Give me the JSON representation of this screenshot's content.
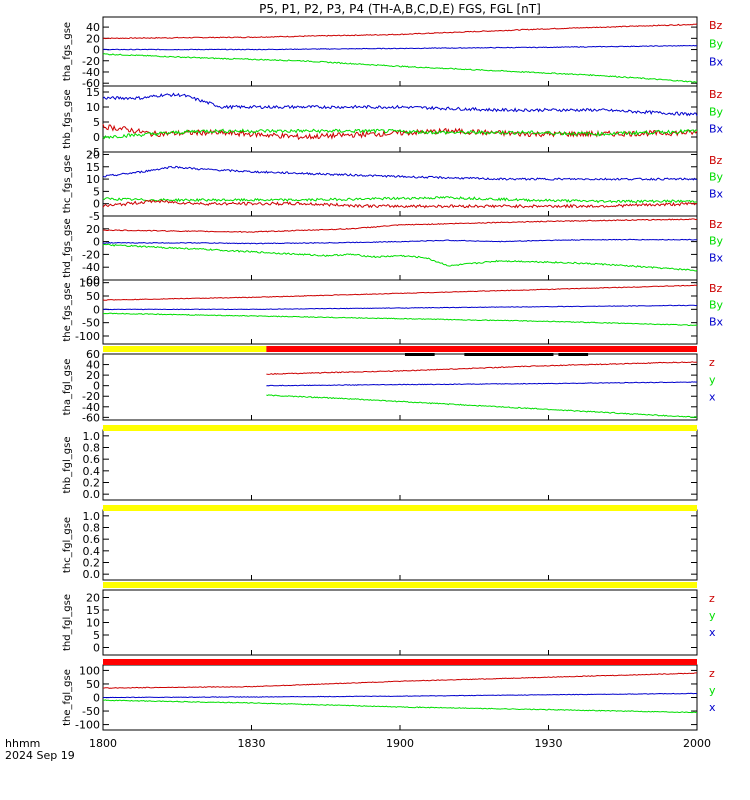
{
  "title": "P5, P1, P2, P3, P4 (TH-A,B,C,D,E) FGS, FGL [nT]",
  "footer": {
    "time_label": "hhmm",
    "date_label": "2024 Sep 19"
  },
  "colors": {
    "x": "#0000cc",
    "y": "#00dd00",
    "z": "#cc0000",
    "bar_yellow": "#ffff00",
    "bar_red": "#ff0000",
    "bar_black": "#000000"
  },
  "chart_data": {
    "type": "line",
    "x_axis": {
      "range": [
        0,
        120
      ],
      "ticks": [
        0,
        30,
        60,
        90,
        120
      ],
      "tick_labels": [
        "1800",
        "1830",
        "1900",
        "1930",
        "2000"
      ]
    },
    "panels": [
      {
        "id": "tha_fgs",
        "ylabel": "tha_fgs_gse",
        "ylim": [
          -65,
          58
        ],
        "yticks": [
          -60,
          -40,
          -20,
          0,
          20,
          40
        ],
        "ytick_labels": [
          "-60",
          "-40",
          "-20",
          "0",
          "20",
          "40"
        ],
        "legend": [
          "Bz",
          "By",
          "Bx"
        ],
        "series": [
          {
            "name": "Bz",
            "color": "z",
            "noise": 0.8,
            "x": [
              0,
              30,
              60,
              90,
              120
            ],
            "y": [
              20,
              22,
              27,
              37,
              45
            ]
          },
          {
            "name": "By",
            "color": "x",
            "noise": 0.6,
            "x": [
              0,
              30,
              60,
              90,
              120
            ],
            "y": [
              0,
              0,
              2,
              4,
              7
            ]
          },
          {
            "name": "Bx",
            "color": "y",
            "noise": 1.0,
            "x": [
              0,
              20,
              40,
              60,
              80,
              100,
              120
            ],
            "y": [
              -8,
              -15,
              -20,
              -30,
              -38,
              -46,
              -58
            ]
          }
        ]
      },
      {
        "id": "thb_fgs",
        "ylabel": "thb_fgs_gse",
        "ylim": [
          -5,
          17
        ],
        "yticks": [
          -5,
          0,
          5,
          10,
          15
        ],
        "ytick_labels": [
          "-5",
          "0",
          "5",
          "10",
          "15"
        ],
        "legend": [
          "Bz",
          "By",
          "Bx"
        ],
        "series": [
          {
            "name": "Bz",
            "color": "x",
            "noise": 0.5,
            "x": [
              0,
              8,
              12,
              16,
              20,
              24,
              32,
              45,
              60,
              80,
              100,
              120
            ],
            "y": [
              13,
              13,
              14,
              14,
              12,
              10,
              10,
              10,
              10,
              9,
              9,
              7.5
            ]
          },
          {
            "name": "By",
            "color": "z",
            "noise": 0.9,
            "x": [
              0,
              5,
              10,
              20,
              30,
              40,
              55,
              70,
              85,
              100,
              120
            ],
            "y": [
              3.5,
              2.5,
              1,
              1.5,
              1,
              0,
              1,
              2,
              1,
              1,
              1.5
            ]
          },
          {
            "name": "Bx",
            "color": "y",
            "noise": 0.6,
            "x": [
              0,
              10,
              20,
              30,
              40,
              55,
              70,
              85,
              100,
              120
            ],
            "y": [
              0,
              1,
              2,
              2,
              2,
              2,
              1.5,
              1.5,
              1,
              2
            ]
          }
        ]
      },
      {
        "id": "thc_fgs",
        "ylabel": "thc_fgs_gse",
        "ylim": [
          -5,
          21
        ],
        "yticks": [
          -5,
          0,
          5,
          10,
          15,
          20
        ],
        "ytick_labels": [
          "-5",
          "0",
          "5",
          "10",
          "15",
          "20"
        ],
        "legend": [
          "Bz",
          "By",
          "Bx"
        ],
        "series": [
          {
            "name": "Bz",
            "color": "x",
            "noise": 0.4,
            "x": [
              0,
              8,
              14,
              20,
              30,
              45,
              60,
              80,
              100,
              120
            ],
            "y": [
              11,
              13,
              15,
              14,
              13,
              12,
              11,
              10,
              10,
              10
            ]
          },
          {
            "name": "By",
            "color": "y",
            "noise": 0.5,
            "x": [
              0,
              10,
              20,
              30,
              40,
              55,
              70,
              85,
              100,
              120
            ],
            "y": [
              2,
              1.5,
              1.5,
              1.5,
              1.5,
              2,
              2.5,
              1.5,
              1,
              1
            ]
          },
          {
            "name": "Bx",
            "color": "z",
            "noise": 0.6,
            "x": [
              0,
              10,
              20,
              30,
              40,
              55,
              70,
              85,
              100,
              120
            ],
            "y": [
              -1,
              1,
              0,
              0,
              0,
              -1,
              -1,
              -1,
              -1,
              0
            ]
          }
        ]
      },
      {
        "id": "thd_fgs",
        "ylabel": "thd_fgs_gse",
        "ylim": [
          -60,
          40
        ],
        "yticks": [
          -60,
          -40,
          -20,
          0,
          20
        ],
        "ytick_labels": [
          "-60",
          "-40",
          "-20",
          "0",
          "20"
        ],
        "legend": [
          "Bz",
          "By",
          "Bx"
        ],
        "series": [
          {
            "name": "Bz",
            "color": "z",
            "noise": 0.7,
            "x": [
              0,
              30,
              50,
              60,
              80,
              100,
              120
            ],
            "y": [
              18,
              15,
              20,
              26,
              30,
              33,
              35
            ]
          },
          {
            "name": "By",
            "color": "x",
            "noise": 0.6,
            "x": [
              0,
              20,
              30,
              45,
              60,
              70,
              80,
              90,
              100,
              120
            ],
            "y": [
              -2,
              -2,
              -3,
              -2,
              0,
              2,
              0,
              2,
              3,
              3
            ]
          },
          {
            "name": "Bx",
            "color": "y",
            "noise": 1.2,
            "x": [
              0,
              20,
              35,
              45,
              50,
              55,
              60,
              65,
              70,
              80,
              90,
              100,
              120
            ],
            "y": [
              -5,
              -12,
              -18,
              -22,
              -20,
              -24,
              -22,
              -25,
              -38,
              -30,
              -32,
              -35,
              -45
            ]
          }
        ]
      },
      {
        "id": "the_fgs",
        "ylabel": "the_fgs_gse",
        "ylim": [
          -130,
          110
        ],
        "yticks": [
          -100,
          -50,
          0,
          50,
          100
        ],
        "ytick_labels": [
          "-100",
          "-50",
          "0",
          "50",
          "100"
        ],
        "legend": [
          "Bz",
          "By",
          "Bx"
        ],
        "series": [
          {
            "name": "Bz",
            "color": "z",
            "noise": 1.2,
            "x": [
              0,
              30,
              60,
              90,
              120
            ],
            "y": [
              35,
              45,
              60,
              75,
              90
            ]
          },
          {
            "name": "By",
            "color": "x",
            "noise": 1.0,
            "x": [
              0,
              30,
              60,
              90,
              120
            ],
            "y": [
              0,
              0,
              5,
              10,
              15
            ]
          },
          {
            "name": "Bx",
            "color": "y",
            "noise": 1.5,
            "x": [
              0,
              30,
              60,
              90,
              120
            ],
            "y": [
              -15,
              -25,
              -35,
              -45,
              -60
            ]
          }
        ]
      },
      {
        "id": "tha_fgl",
        "ylabel": "tha_fgl_gse",
        "ylim": [
          -65,
          60
        ],
        "yticks": [
          -60,
          -40,
          -20,
          0,
          20,
          40,
          60
        ],
        "ytick_labels": [
          "-60",
          "-40",
          "-20",
          "0",
          "20",
          "40",
          "60"
        ],
        "legend": [
          "z",
          "y",
          "x"
        ],
        "series": [
          {
            "name": "z",
            "color": "z",
            "noise": 0.8,
            "x": [
              33,
              60,
              90,
              120
            ],
            "y": [
              22,
              28,
              38,
              45
            ]
          },
          {
            "name": "y",
            "color": "x",
            "noise": 0.6,
            "x": [
              33,
              60,
              90,
              120
            ],
            "y": [
              0,
              2,
              4,
              7
            ]
          },
          {
            "name": "x",
            "color": "y",
            "noise": 1.0,
            "x": [
              33,
              50,
              70,
              90,
              120
            ],
            "y": [
              -18,
              -25,
              -35,
              -45,
              -60
            ]
          }
        ]
      },
      {
        "id": "thb_fgl",
        "ylabel": "thb_fgl_gse",
        "ylim": [
          -0.1,
          1.1
        ],
        "yticks": [
          0,
          0.2,
          0.4,
          0.6,
          0.8,
          1.0
        ],
        "ytick_labels": [
          "0.0",
          "0.2",
          "0.4",
          "0.6",
          "0.8",
          "1.0"
        ],
        "legend": [],
        "series": []
      },
      {
        "id": "thc_fgl",
        "ylabel": "thc_fgl_gse",
        "ylim": [
          -0.1,
          1.1
        ],
        "yticks": [
          0,
          0.2,
          0.4,
          0.6,
          0.8,
          1.0
        ],
        "ytick_labels": [
          "0.0",
          "0.2",
          "0.4",
          "0.6",
          "0.8",
          "1.0"
        ],
        "legend": [],
        "series": []
      },
      {
        "id": "thd_fgl",
        "ylabel": "thd_fgl_gse",
        "ylim": [
          -3,
          23
        ],
        "yticks": [
          0,
          5,
          10,
          15,
          20
        ],
        "ytick_labels": [
          "0",
          "5",
          "10",
          "15",
          "20"
        ],
        "legend": [
          "z",
          "y",
          "x"
        ],
        "series": []
      },
      {
        "id": "the_fgl",
        "ylabel": "the_fgl_gse",
        "ylim": [
          -120,
          120
        ],
        "yticks": [
          -100,
          -50,
          0,
          50,
          100
        ],
        "ytick_labels": [
          "-100",
          "-50",
          "0",
          "50",
          "100"
        ],
        "legend": [
          "z",
          "y",
          "x"
        ],
        "series": [
          {
            "name": "z",
            "color": "z",
            "noise": 1.2,
            "x": [
              0,
              30,
              60,
              90,
              120
            ],
            "y": [
              35,
              40,
              60,
              75,
              90
            ]
          },
          {
            "name": "y",
            "color": "x",
            "noise": 1.0,
            "x": [
              0,
              30,
              60,
              90,
              120
            ],
            "y": [
              0,
              2,
              5,
              10,
              15
            ]
          },
          {
            "name": "x",
            "color": "y",
            "noise": 1.5,
            "x": [
              0,
              30,
              60,
              90,
              120
            ],
            "y": [
              -10,
              -20,
              -35,
              -45,
              -55
            ]
          }
        ]
      }
    ],
    "status_bars": [
      {
        "after_panel": 4,
        "segments": [
          {
            "x0": 0,
            "x1": 33,
            "color": "bar_yellow"
          },
          {
            "x0": 33,
            "x1": 120,
            "color": "bar_red"
          }
        ],
        "marks": [
          [
            61,
            67
          ],
          [
            73,
            91
          ],
          [
            92,
            98
          ]
        ]
      },
      {
        "after_panel": 5,
        "segments": [
          {
            "x0": 0,
            "x1": 120,
            "color": "bar_yellow"
          }
        ],
        "marks": []
      },
      {
        "after_panel": 6,
        "segments": [
          {
            "x0": 0,
            "x1": 120,
            "color": "bar_yellow"
          }
        ],
        "marks": []
      },
      {
        "after_panel": 7,
        "segments": [
          {
            "x0": 0,
            "x1": 120,
            "color": "bar_yellow"
          }
        ],
        "marks": []
      },
      {
        "after_panel": 8,
        "segments": [
          {
            "x0": 0,
            "x1": 120,
            "color": "bar_red"
          }
        ],
        "marks": []
      }
    ]
  }
}
